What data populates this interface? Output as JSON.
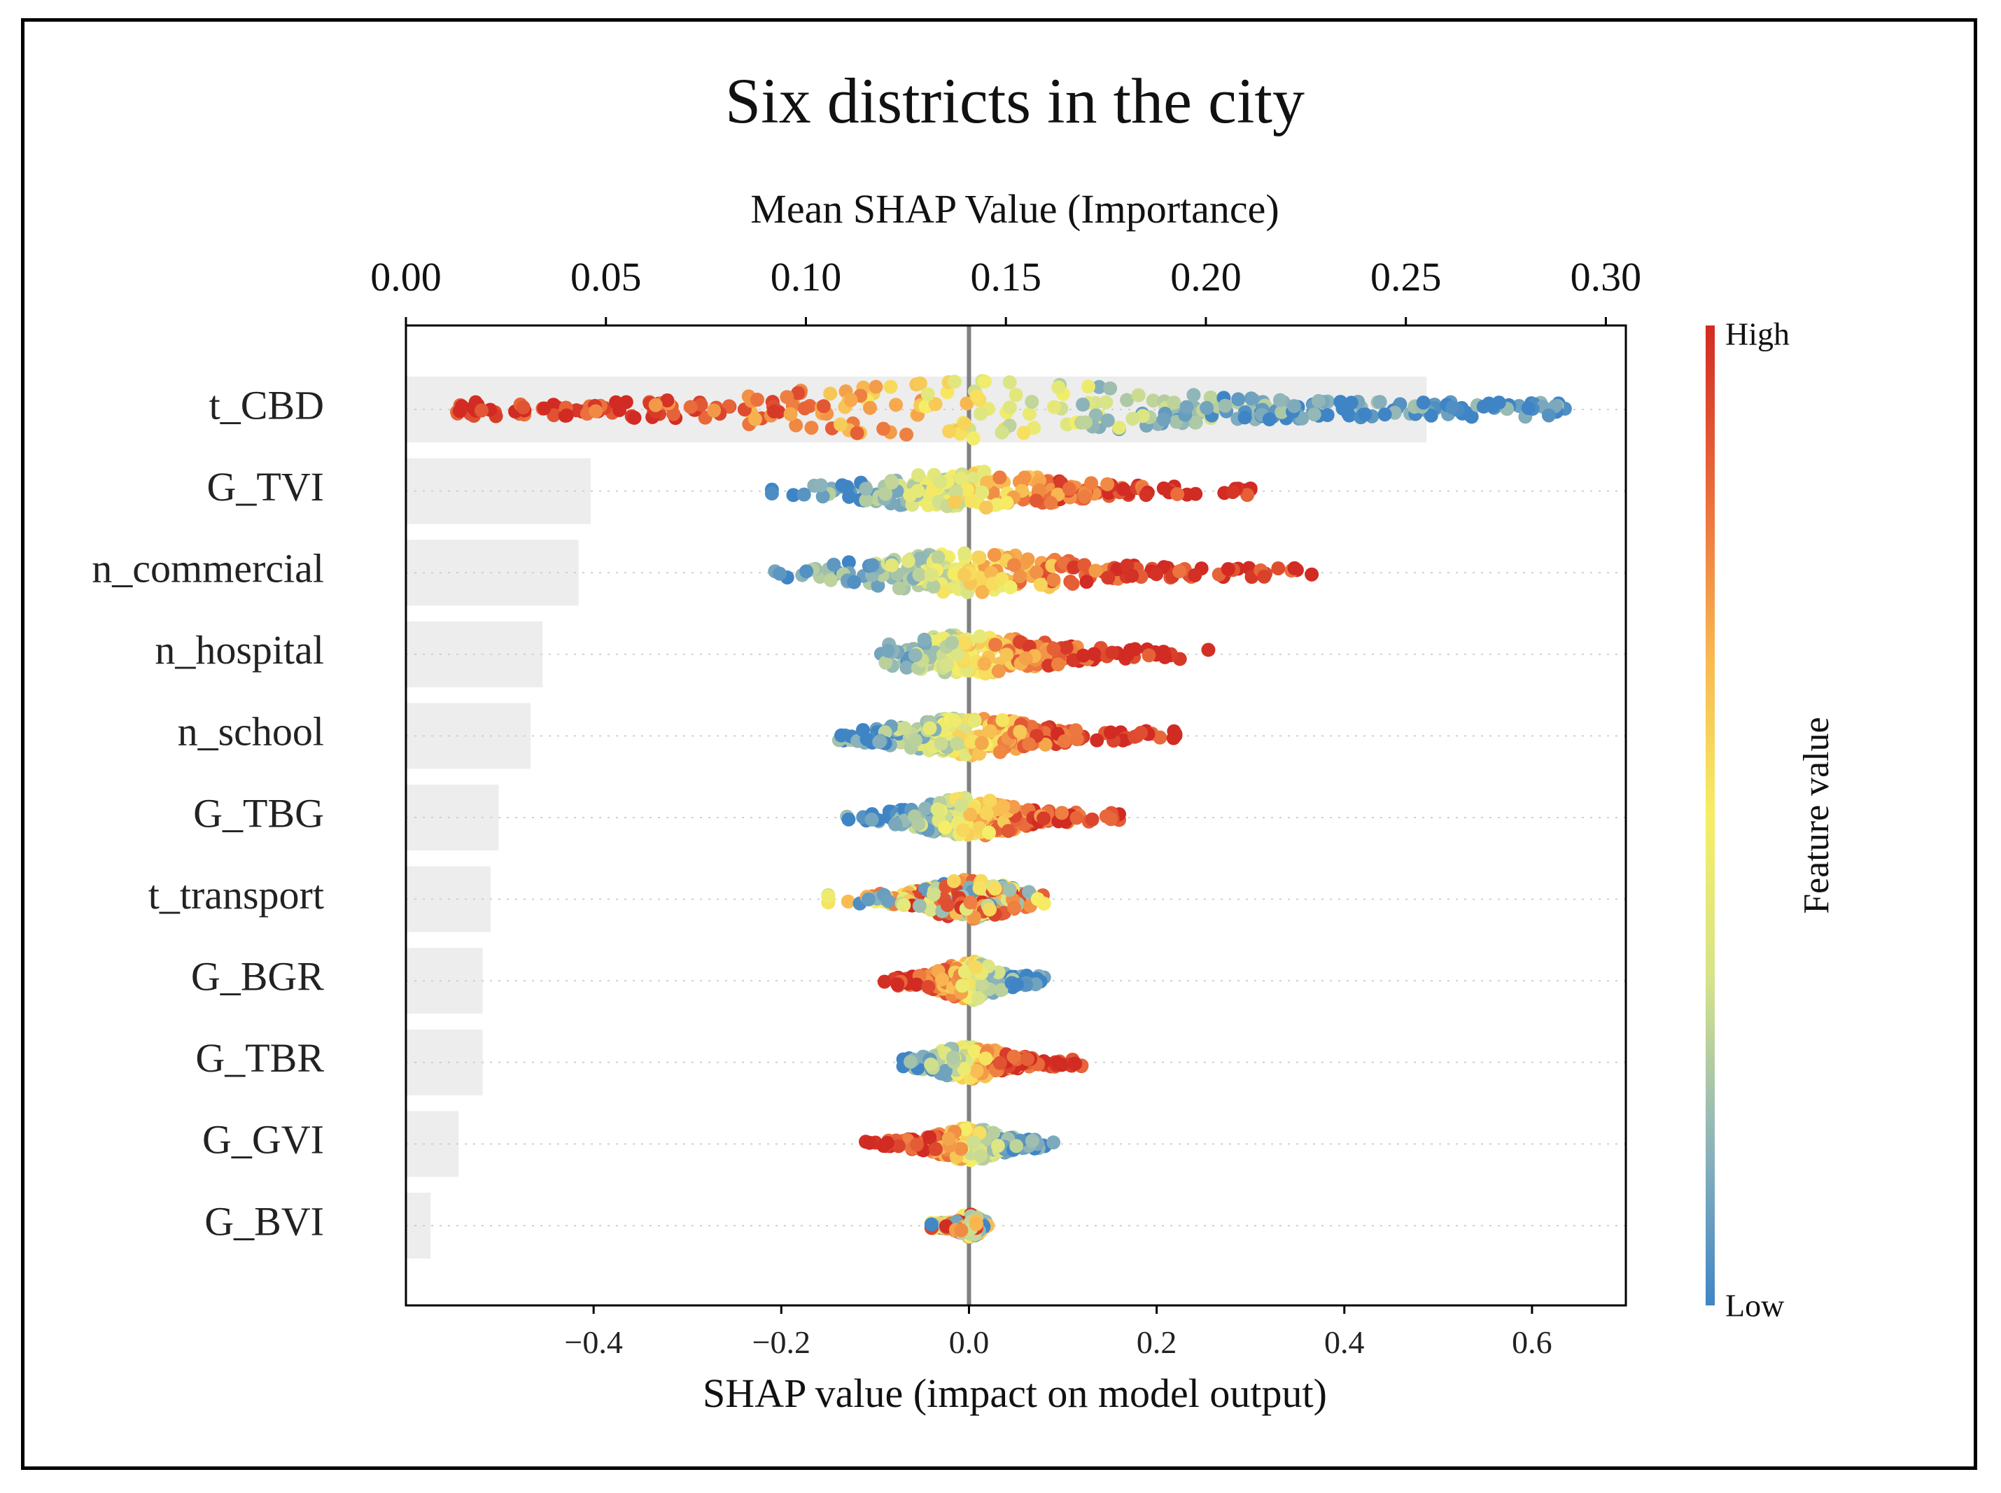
{
  "chart_data": {
    "type": "scatter",
    "subtype": "shap-beeswarm-with-mean-importance-bars",
    "title": "Six districts in the city",
    "top_axis": {
      "label": "Mean SHAP Value (Importance)",
      "range": [
        0.0,
        0.305
      ],
      "ticks": [
        0.0,
        0.05,
        0.1,
        0.15,
        0.2,
        0.25,
        0.3
      ],
      "tick_labels": [
        "0.00",
        "0.05",
        "0.10",
        "0.15",
        "0.20",
        "0.25",
        "0.30"
      ]
    },
    "bottom_axis": {
      "label": "SHAP value (impact on model output)",
      "range": [
        -0.6,
        0.7
      ],
      "ticks": [
        -0.4,
        -0.2,
        0.0,
        0.2,
        0.4,
        0.6
      ],
      "tick_labels": [
        "−0.4",
        "−0.2",
        "0.0",
        "0.2",
        "0.4",
        "0.6"
      ]
    },
    "features": [
      {
        "name": "t_CBD",
        "mean_importance": 0.255,
        "shap_min": -0.55,
        "shap_max": 0.64,
        "positive_color": "low",
        "spread": 0.9
      },
      {
        "name": "G_TVI",
        "mean_importance": 0.046,
        "shap_min": -0.21,
        "shap_max": 0.3,
        "positive_color": "high",
        "spread": 0.6
      },
      {
        "name": "n_commercial",
        "mean_importance": 0.043,
        "shap_min": -0.21,
        "shap_max": 0.37,
        "positive_color": "high",
        "spread": 0.6
      },
      {
        "name": "n_hospital",
        "mean_importance": 0.034,
        "shap_min": -0.11,
        "shap_max": 0.27,
        "positive_color": "high",
        "spread": 0.6
      },
      {
        "name": "n_school",
        "mean_importance": 0.031,
        "shap_min": -0.14,
        "shap_max": 0.22,
        "positive_color": "high",
        "spread": 0.6
      },
      {
        "name": "G_TBG",
        "mean_importance": 0.023,
        "shap_min": -0.13,
        "shap_max": 0.16,
        "positive_color": "high",
        "spread": 0.6
      },
      {
        "name": "t_transport",
        "mean_importance": 0.021,
        "shap_min": -0.15,
        "shap_max": 0.08,
        "positive_color": "mixed",
        "spread": 0.6
      },
      {
        "name": "G_BGR",
        "mean_importance": 0.019,
        "shap_min": -0.09,
        "shap_max": 0.08,
        "positive_color": "low",
        "spread": 0.6
      },
      {
        "name": "G_TBR",
        "mean_importance": 0.019,
        "shap_min": -0.07,
        "shap_max": 0.12,
        "positive_color": "high",
        "spread": 0.5
      },
      {
        "name": "G_GVI",
        "mean_importance": 0.013,
        "shap_min": -0.11,
        "shap_max": 0.09,
        "positive_color": "low",
        "spread": 0.5
      },
      {
        "name": "G_BVI",
        "mean_importance": 0.006,
        "shap_min": -0.04,
        "shap_max": 0.02,
        "positive_color": "mixed",
        "spread": 0.35
      }
    ],
    "colorbar": {
      "title": "Feature value",
      "high_label": "High",
      "low_label": "Low",
      "colors": [
        "#3f85c6",
        "#8fb5b9",
        "#d6e38a",
        "#f6ee64",
        "#f8b650",
        "#ea6a3b",
        "#d12b23"
      ]
    },
    "bar_color": "#ededed",
    "zero_line_color": "#808080"
  }
}
